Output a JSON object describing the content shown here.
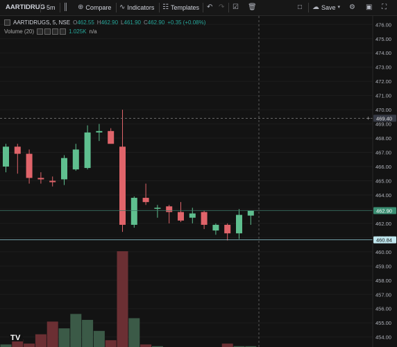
{
  "toolbar": {
    "symbol": "AARTIDRUG",
    "interval": "5m",
    "compare": "Compare",
    "indicators": "Indicators",
    "templates": "Templates",
    "save": "Save"
  },
  "legend": {
    "title": "AARTIDRUGS, 5, NSE",
    "o_label": "O",
    "o_val": "462.55",
    "h_label": "H",
    "h_val": "462.90",
    "l_label": "L",
    "l_val": "461.90",
    "c_label": "C",
    "c_val": "462.90",
    "change": "+0.35 (+0.08%)",
    "volume_title": "Volume (20)",
    "volume_val": "1.025K",
    "volume_na": "n/a"
  },
  "colors": {
    "up": "#5fbf8f",
    "down": "#e0646a",
    "vol_up": "#3b5a47",
    "vol_down": "#6b2f33",
    "bg": "#131313"
  },
  "chart_data": {
    "type": "candlestick",
    "y_ticks": [
      "476.00",
      "475.00",
      "474.00",
      "473.00",
      "472.00",
      "471.00",
      "470.00",
      "469.00",
      "468.00",
      "467.00",
      "466.00",
      "465.00",
      "464.00",
      "463.00",
      "462.00",
      "461.00",
      "460.00",
      "459.00",
      "458.00",
      "457.00",
      "456.00",
      "455.00",
      "454.00"
    ],
    "ylim": [
      453.3,
      476.6
    ],
    "price_tags": [
      {
        "value": 469.4,
        "label": "469.40",
        "style": "crosshair"
      },
      {
        "value": 462.9,
        "label": "462.90",
        "style": "last"
      },
      {
        "value": 460.84,
        "label": "460.84",
        "style": "line"
      }
    ],
    "candles": [
      {
        "o": 466.0,
        "h": 467.6,
        "l": 465.6,
        "c": 467.4
      },
      {
        "o": 467.4,
        "h": 467.6,
        "l": 465.5,
        "c": 466.9
      },
      {
        "o": 466.9,
        "h": 467.2,
        "l": 464.8,
        "c": 465.2
      },
      {
        "o": 465.2,
        "h": 465.6,
        "l": 464.8,
        "c": 465.1
      },
      {
        "o": 465.0,
        "h": 465.3,
        "l": 464.6,
        "c": 464.9
      },
      {
        "o": 465.1,
        "h": 466.8,
        "l": 464.7,
        "c": 466.6
      },
      {
        "o": 465.8,
        "h": 467.6,
        "l": 465.7,
        "c": 467.2
      },
      {
        "o": 465.9,
        "h": 468.9,
        "l": 465.8,
        "c": 468.4
      },
      {
        "o": 468.4,
        "h": 469.0,
        "l": 467.8,
        "c": 468.5
      },
      {
        "o": 468.5,
        "h": 468.7,
        "l": 467.7,
        "c": 467.6
      },
      {
        "o": 467.4,
        "h": 470.0,
        "l": 461.4,
        "c": 461.9
      },
      {
        "o": 461.9,
        "h": 463.9,
        "l": 461.7,
        "c": 463.8
      },
      {
        "o": 463.8,
        "h": 464.8,
        "l": 463.3,
        "c": 463.5
      },
      {
        "o": 463.1,
        "h": 463.3,
        "l": 462.4,
        "c": 463.1
      },
      {
        "o": 463.2,
        "h": 463.3,
        "l": 462.0,
        "c": 462.8
      },
      {
        "o": 462.8,
        "h": 463.5,
        "l": 462.1,
        "c": 462.2
      },
      {
        "o": 462.4,
        "h": 463.1,
        "l": 462.0,
        "c": 462.7
      },
      {
        "o": 462.8,
        "h": 462.9,
        "l": 461.6,
        "c": 461.9
      },
      {
        "o": 461.5,
        "h": 462.0,
        "l": 461.2,
        "c": 461.9
      },
      {
        "o": 461.9,
        "h": 462.0,
        "l": 460.8,
        "c": 461.3
      },
      {
        "o": 461.3,
        "h": 463.0,
        "l": 460.9,
        "c": 462.6
      },
      {
        "o": 462.55,
        "h": 462.9,
        "l": 461.9,
        "c": 462.9
      }
    ],
    "volumes": [
      0.3,
      0.9,
      0.4,
      1.5,
      3.0,
      2.2,
      3.9,
      3.2,
      1.9,
      0.8,
      11.3,
      3.4,
      0.3,
      0.1,
      0.0,
      0.0,
      0.0,
      0.0,
      0.0,
      0.4,
      0.1,
      0.1
    ],
    "vol_max_label_value": 11.3
  }
}
